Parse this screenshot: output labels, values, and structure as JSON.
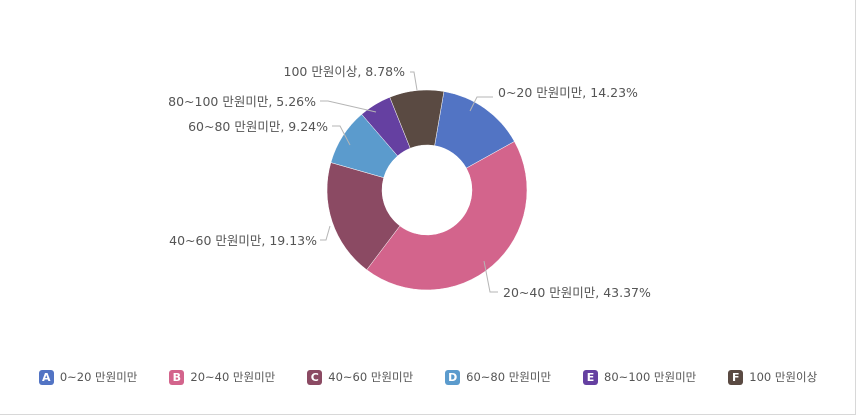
{
  "chart_data": {
    "type": "pie",
    "variant": "donut",
    "categories": [
      "0~20 만원미만",
      "20~40 만원미만",
      "40~60 만원미만",
      "60~80 만원미만",
      "80~100 만원미만",
      "100 만원이상"
    ],
    "values": [
      14.23,
      43.37,
      19.13,
      9.24,
      5.26,
      8.78
    ],
    "unit": "%",
    "slice_labels": [
      "0~20 만원미만, 14.23%",
      "20~40 만원미만, 43.37%",
      "40~60 만원미만, 19.13%",
      "60~80 만원미만, 9.24%",
      "80~100 만원미만, 5.26%",
      "100 만원이상, 8.78%"
    ],
    "colors": [
      "#5274c4",
      "#d3648c",
      "#8b4a63",
      "#5b9bcd",
      "#6540a1",
      "#5a4a42"
    ],
    "legend": {
      "placement": "bottom",
      "badges": [
        "A",
        "B",
        "C",
        "D",
        "E",
        "F"
      ],
      "labels": [
        "0~20 만원미만",
        "20~40 만원미만",
        "40~60 만원미만",
        "60~80 만원미만",
        "80~100 만원미만",
        "100 만원이상"
      ]
    }
  }
}
